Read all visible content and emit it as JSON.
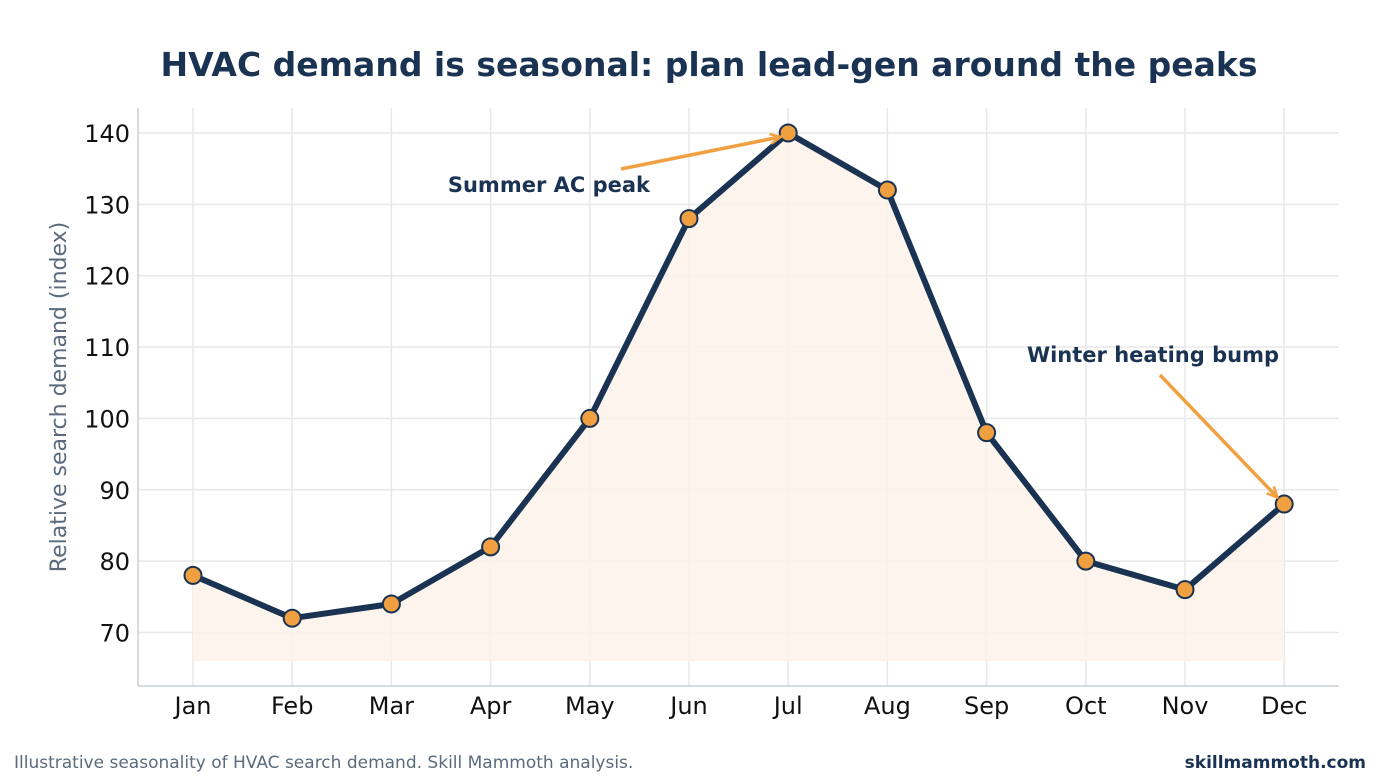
{
  "chart_data": {
    "type": "line",
    "title": "HVAC demand is seasonal: plan lead-gen around the peaks",
    "ylabel": "Relative search demand (index)",
    "xlabel": "",
    "categories": [
      "Jan",
      "Feb",
      "Mar",
      "Apr",
      "May",
      "Jun",
      "Jul",
      "Aug",
      "Sep",
      "Oct",
      "Nov",
      "Dec"
    ],
    "values": [
      78,
      72,
      74,
      82,
      100,
      128,
      140,
      132,
      98,
      80,
      76,
      88
    ],
    "ylim": [
      62.5,
      143.5
    ],
    "yticks": [
      70,
      80,
      90,
      100,
      110,
      120,
      130,
      140
    ],
    "grid": true,
    "fill_area": true,
    "annotations": [
      {
        "text": "Summer AC peak",
        "target_category": "Jul",
        "target_value": 140
      },
      {
        "text": "Winter heating bump",
        "target_category": "Dec",
        "target_value": 88
      }
    ],
    "colors": {
      "line": "#1b3352",
      "marker": "#f0a040",
      "fill": "#fdf3ea",
      "arrow": "#f0a040",
      "grid": "#e8e8e8"
    }
  },
  "footer": {
    "caption": "Illustrative seasonality of HVAC search demand. Skill Mammoth analysis.",
    "brand": "skillmammoth.com"
  }
}
